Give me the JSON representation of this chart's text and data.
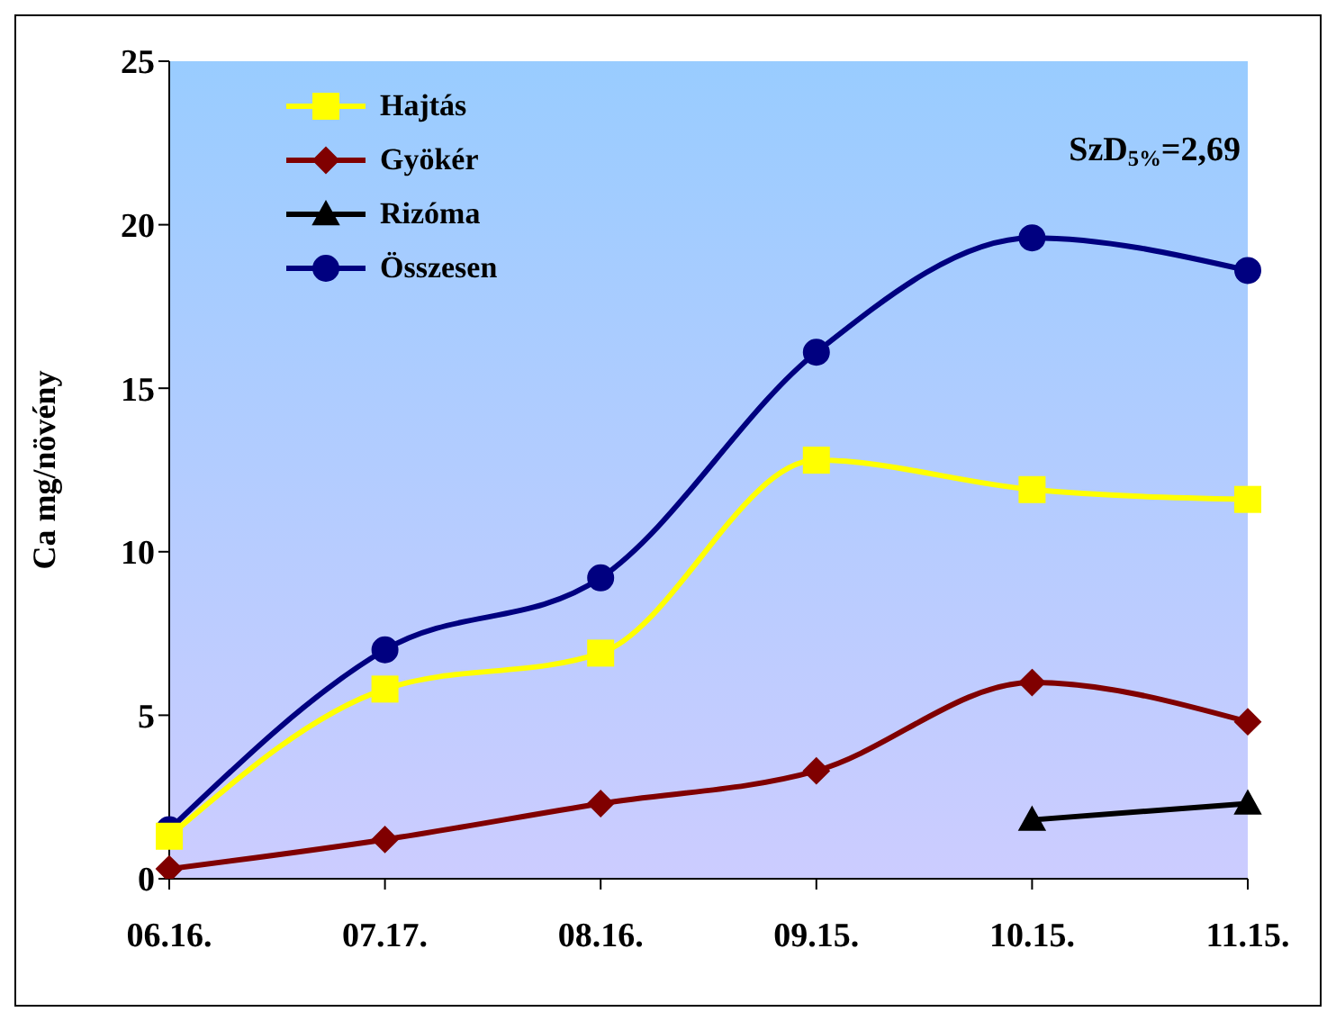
{
  "chart_data": {
    "type": "line",
    "ylabel": "Ca mg/növény",
    "categories": [
      "06.16.",
      "07.17.",
      "08.16.",
      "09.15.",
      "10.15.",
      "11.15."
    ],
    "series": [
      {
        "name": "Hajtás",
        "color": "#ffff00",
        "marker": "square",
        "values": [
          1.3,
          5.8,
          6.9,
          12.8,
          11.9,
          11.6
        ]
      },
      {
        "name": "Gyökér",
        "color": "#800000",
        "marker": "diamond",
        "values": [
          0.3,
          1.2,
          2.3,
          3.3,
          6.0,
          4.8
        ]
      },
      {
        "name": "Rizóma",
        "color": "#000000",
        "marker": "triangle",
        "values": [
          null,
          null,
          null,
          null,
          1.8,
          2.3
        ]
      },
      {
        "name": "Összesen",
        "color": "#000080",
        "marker": "circle",
        "values": [
          1.5,
          7.0,
          9.2,
          16.1,
          19.6,
          18.6
        ]
      }
    ],
    "ylim": [
      0,
      25
    ],
    "yticks": [
      0,
      5,
      10,
      15,
      20,
      25
    ],
    "grid": false,
    "legend": "top left",
    "annotations": [
      "SzD$_{5%}$=2,69"
    ]
  }
}
